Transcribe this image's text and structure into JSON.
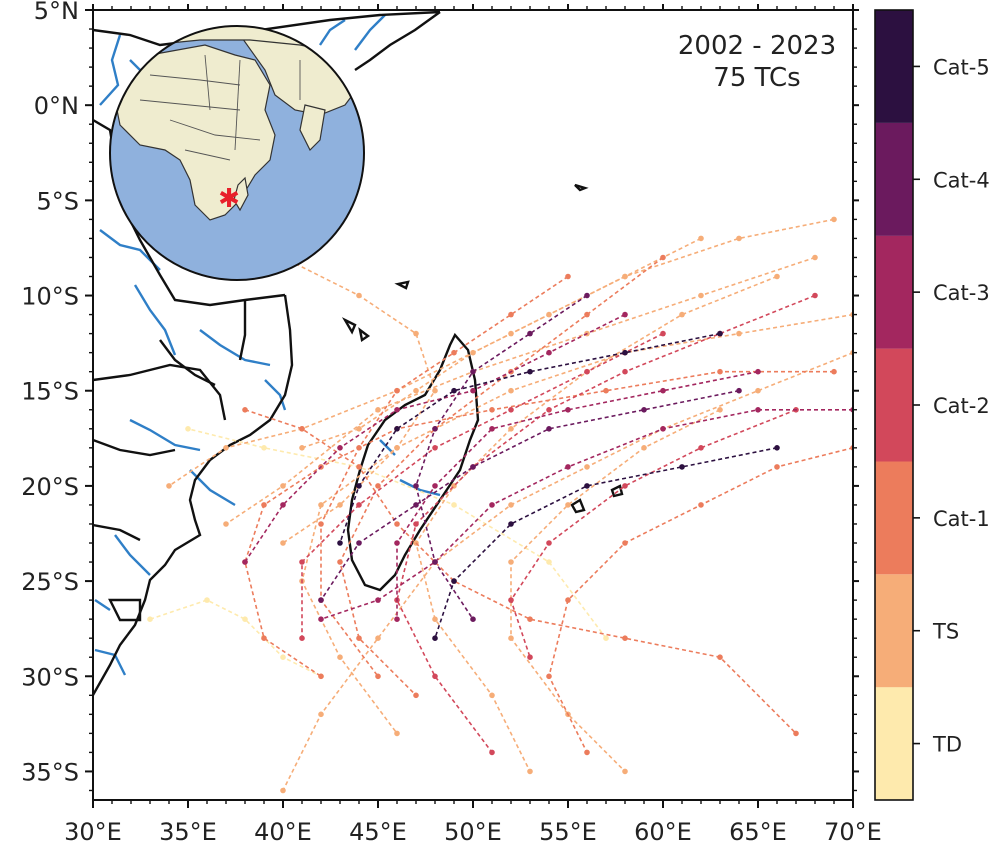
{
  "map": {
    "annotation": {
      "period": "2002 - 2023",
      "count": "75 TCs"
    },
    "lon_ticks": [
      "30°E",
      "35°E",
      "40°E",
      "45°E",
      "50°E",
      "55°E",
      "60°E",
      "65°E",
      "70°E"
    ],
    "lat_ticks": [
      "5°N",
      "0°N",
      "5°S",
      "10°S",
      "15°S",
      "20°S",
      "25°S",
      "30°S",
      "35°S"
    ],
    "lon_range": [
      30,
      70
    ],
    "lat_range": [
      5,
      -36.5
    ],
    "colorbar": {
      "categories": [
        {
          "label": "TD",
          "color": "#feeaad"
        },
        {
          "label": "TS",
          "color": "#f6ad78"
        },
        {
          "label": "Cat-1",
          "color": "#ec7c5c"
        },
        {
          "label": "Cat-2",
          "color": "#d2485b"
        },
        {
          "label": "Cat-3",
          "color": "#a3275f"
        },
        {
          "label": "Cat-4",
          "color": "#6b1a5e"
        },
        {
          "label": "Cat-5",
          "color": "#2c1040"
        }
      ]
    },
    "inset_globe": {
      "ocean_color": "#8fb1dd",
      "land_color": "#efeccf",
      "marker_color": "#e8202a"
    },
    "colors": {
      "coast": "#111111",
      "river": "#2f7fc7"
    },
    "tracks": [
      {
        "cat": 0,
        "pts": [
          [
            33,
            -27
          ],
          [
            36,
            -26
          ],
          [
            38,
            -27
          ],
          [
            40,
            -29
          ],
          [
            42,
            -30
          ]
        ]
      },
      {
        "cat": 0,
        "pts": [
          [
            57,
            -28
          ],
          [
            54,
            -24
          ],
          [
            49,
            -21
          ],
          [
            44,
            -19
          ],
          [
            39,
            -18
          ],
          [
            35,
            -17
          ]
        ]
      },
      {
        "cat": 1,
        "pts": [
          [
            69,
            -6
          ],
          [
            64,
            -7
          ],
          [
            58,
            -9
          ],
          [
            52,
            -12
          ],
          [
            46,
            -15
          ],
          [
            41,
            -17
          ],
          [
            37,
            -18
          ],
          [
            34,
            -20
          ]
        ]
      },
      {
        "cat": 1,
        "pts": [
          [
            68,
            -8
          ],
          [
            62,
            -10
          ],
          [
            56,
            -12
          ],
          [
            50,
            -14
          ],
          [
            45,
            -16
          ],
          [
            40,
            -20
          ],
          [
            37,
            -22
          ]
        ]
      },
      {
        "cat": 1,
        "pts": [
          [
            70,
            -11
          ],
          [
            64,
            -12
          ],
          [
            58,
            -13
          ],
          [
            52,
            -15
          ],
          [
            46,
            -18
          ],
          [
            42,
            -21
          ],
          [
            41,
            -25
          ],
          [
            43,
            -29
          ],
          [
            46,
            -33
          ]
        ]
      },
      {
        "cat": 1,
        "pts": [
          [
            62,
            -7
          ],
          [
            58,
            -9
          ],
          [
            54,
            -11
          ],
          [
            50,
            -13
          ],
          [
            47,
            -15
          ],
          [
            44,
            -17
          ],
          [
            41,
            -18
          ]
        ]
      },
      {
        "cat": 1,
        "pts": [
          [
            70,
            -13
          ],
          [
            65,
            -15
          ],
          [
            60,
            -17
          ],
          [
            56,
            -19
          ],
          [
            52,
            -21
          ],
          [
            48,
            -24
          ],
          [
            45,
            -28
          ],
          [
            42,
            -32
          ],
          [
            40,
            -36
          ]
        ]
      },
      {
        "cat": 1,
        "pts": [
          [
            40,
            -8
          ],
          [
            44,
            -10
          ],
          [
            47,
            -12
          ],
          [
            48,
            -15
          ],
          [
            46,
            -18
          ],
          [
            43,
            -21
          ],
          [
            40,
            -23
          ]
        ]
      },
      {
        "cat": 1,
        "pts": [
          [
            66,
            -9
          ],
          [
            61,
            -11
          ],
          [
            56,
            -14
          ],
          [
            52,
            -17
          ],
          [
            49,
            -20
          ],
          [
            47,
            -23
          ],
          [
            48,
            -27
          ],
          [
            51,
            -31
          ],
          [
            53,
            -35
          ]
        ]
      },
      {
        "cat": 1,
        "pts": [
          [
            63,
            -16
          ],
          [
            59,
            -18
          ],
          [
            55,
            -21
          ],
          [
            52,
            -24
          ],
          [
            52,
            -28
          ],
          [
            55,
            -32
          ],
          [
            58,
            -35
          ]
        ]
      },
      {
        "cat": 2,
        "pts": [
          [
            69,
            -14
          ],
          [
            63,
            -14
          ],
          [
            57,
            -15
          ],
          [
            51,
            -16
          ],
          [
            46,
            -17
          ],
          [
            42,
            -19
          ],
          [
            39,
            -21
          ],
          [
            38,
            -24
          ],
          [
            39,
            -28
          ],
          [
            42,
            -30
          ]
        ]
      },
      {
        "cat": 2,
        "pts": [
          [
            60,
            -8
          ],
          [
            56,
            -11
          ],
          [
            52,
            -14
          ],
          [
            48,
            -17
          ],
          [
            45,
            -20
          ],
          [
            43,
            -24
          ],
          [
            44,
            -28
          ],
          [
            47,
            -31
          ]
        ]
      },
      {
        "cat": 2,
        "pts": [
          [
            70,
            -18
          ],
          [
            66,
            -19
          ],
          [
            62,
            -21
          ],
          [
            58,
            -23
          ],
          [
            55,
            -26
          ],
          [
            54,
            -30
          ],
          [
            56,
            -34
          ]
        ]
      },
      {
        "cat": 2,
        "pts": [
          [
            55,
            -9
          ],
          [
            52,
            -11
          ],
          [
            49,
            -13
          ],
          [
            46,
            -15
          ],
          [
            44,
            -18
          ],
          [
            42,
            -22
          ],
          [
            42,
            -26
          ],
          [
            45,
            -30
          ]
        ]
      },
      {
        "cat": 2,
        "pts": [
          [
            38,
            -16
          ],
          [
            41,
            -17
          ],
          [
            44,
            -19
          ],
          [
            46,
            -22
          ],
          [
            49,
            -25
          ],
          [
            53,
            -27
          ],
          [
            58,
            -28
          ],
          [
            63,
            -29
          ],
          [
            67,
            -33
          ]
        ]
      },
      {
        "cat": 3,
        "pts": [
          [
            68,
            -10
          ],
          [
            63,
            -12
          ],
          [
            58,
            -14
          ],
          [
            54,
            -16
          ],
          [
            50,
            -19
          ],
          [
            47,
            -22
          ],
          [
            46,
            -26
          ],
          [
            48,
            -30
          ],
          [
            51,
            -34
          ]
        ]
      },
      {
        "cat": 3,
        "pts": [
          [
            60,
            -12
          ],
          [
            56,
            -14
          ],
          [
            52,
            -16
          ],
          [
            48,
            -18
          ],
          [
            44,
            -21
          ],
          [
            41,
            -24
          ],
          [
            41,
            -28
          ]
        ]
      },
      {
        "cat": 3,
        "pts": [
          [
            67,
            -16
          ],
          [
            62,
            -18
          ],
          [
            58,
            -20
          ],
          [
            54,
            -23
          ],
          [
            52,
            -26
          ],
          [
            53,
            -29
          ]
        ]
      },
      {
        "cat": 4,
        "pts": [
          [
            70,
            -16
          ],
          [
            65,
            -16
          ],
          [
            60,
            -17
          ],
          [
            55,
            -19
          ],
          [
            51,
            -21
          ],
          [
            48,
            -24
          ],
          [
            45,
            -26
          ],
          [
            42,
            -27
          ]
        ]
      },
      {
        "cat": 4,
        "pts": [
          [
            65,
            -14
          ],
          [
            60,
            -15
          ],
          [
            55,
            -16
          ],
          [
            51,
            -17
          ],
          [
            48,
            -20
          ],
          [
            46,
            -23
          ],
          [
            46,
            -27
          ]
        ]
      },
      {
        "cat": 4,
        "pts": [
          [
            58,
            -11
          ],
          [
            54,
            -13
          ],
          [
            50,
            -15
          ],
          [
            46,
            -16
          ],
          [
            43,
            -18
          ],
          [
            40,
            -21
          ],
          [
            38,
            -24
          ]
        ]
      },
      {
        "cat": 5,
        "pts": [
          [
            64,
            -15
          ],
          [
            59,
            -16
          ],
          [
            54,
            -17
          ],
          [
            50,
            -19
          ],
          [
            47,
            -21
          ],
          [
            44,
            -23
          ],
          [
            42,
            -26
          ]
        ]
      },
      {
        "cat": 5,
        "pts": [
          [
            56,
            -10
          ],
          [
            53,
            -12
          ],
          [
            50,
            -14
          ],
          [
            48,
            -17
          ],
          [
            47,
            -20
          ],
          [
            48,
            -24
          ],
          [
            50,
            -27
          ]
        ]
      },
      {
        "cat": 6,
        "pts": [
          [
            63,
            -12
          ],
          [
            58,
            -13
          ],
          [
            53,
            -14
          ],
          [
            49,
            -15
          ],
          [
            46,
            -17
          ],
          [
            44,
            -20
          ],
          [
            43,
            -23
          ]
        ]
      },
      {
        "cat": 6,
        "pts": [
          [
            66,
            -18
          ],
          [
            61,
            -19
          ],
          [
            56,
            -20
          ],
          [
            52,
            -22
          ],
          [
            49,
            -25
          ],
          [
            48,
            -28
          ]
        ]
      }
    ]
  }
}
